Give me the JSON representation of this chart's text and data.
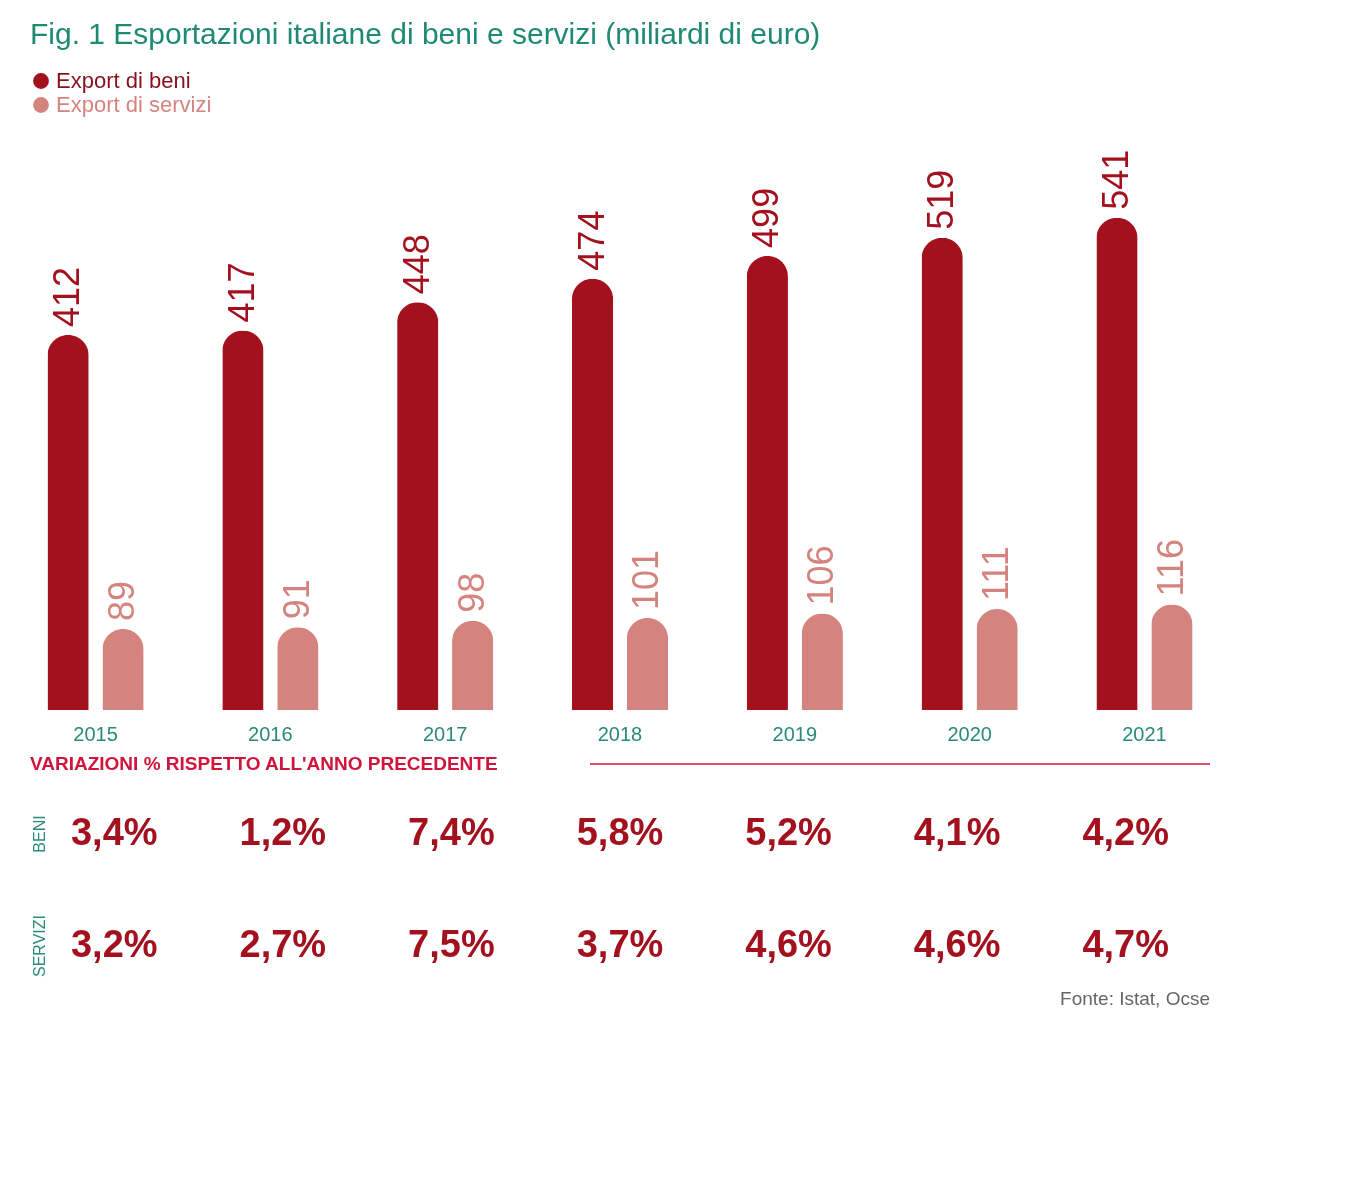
{
  "chart_data": {
    "type": "bar",
    "title": "Fig. 1   Esportazioni italiane di beni e servizi (miliardi di euro)",
    "categories": [
      "2015",
      "2016",
      "2017",
      "2018",
      "2019",
      "2020",
      "2021"
    ],
    "series": [
      {
        "name": "Export di beni",
        "color": "#a3111f",
        "values": [
          412,
          417,
          448,
          474,
          499,
          519,
          541
        ]
      },
      {
        "name": "Export di servizi",
        "color": "#d4837e",
        "values": [
          89,
          91,
          98,
          101,
          106,
          111,
          116
        ]
      }
    ],
    "data_labels": true,
    "legend": "top left",
    "annotations": [
      "VARIAZIONI % RISPETTO ALL'ANNO PRECEDENTE",
      "BENI",
      "SERVIZI",
      "3,4%",
      "1,2%",
      "7,4%",
      "5,8%",
      "5,2%",
      "4,1%",
      "4,2%",
      "3,2%",
      "2,7%",
      "7,5%",
      "3,7%",
      "4,6%",
      "4,6%",
      "4,7%",
      "Fonte: Istat, Ocse"
    ]
  }
}
